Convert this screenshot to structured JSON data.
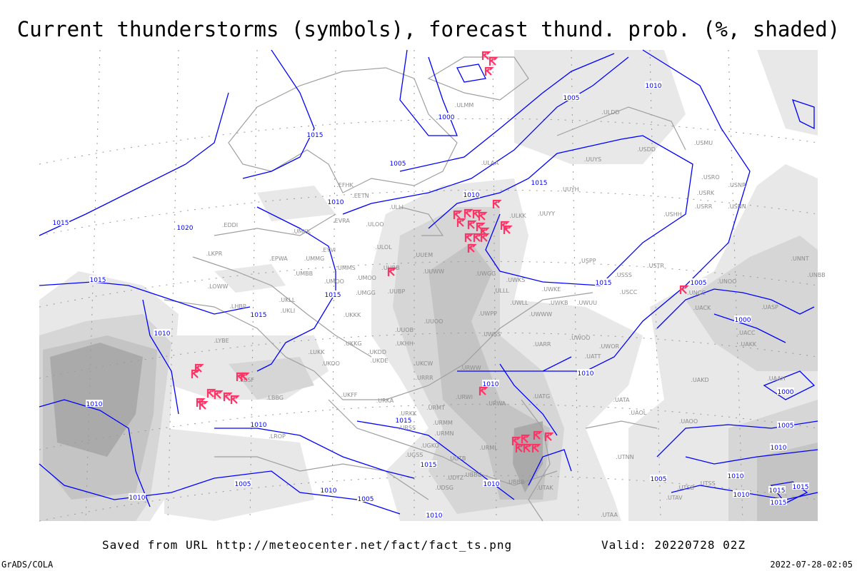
{
  "title": "Current thunderstorms (symbols), forecast thund. prob. (%, shaded)",
  "footer": {
    "saved_from": "Saved from URL http://meteocenter.net/fact/fact_ts.png",
    "valid": "Valid: 20220728 02Z",
    "software": "GrADS/COLA",
    "generated": "2022-07-28-02:05"
  },
  "colors": {
    "isobar": "#0000ff",
    "thunderstorm_symbol": "#ff3366",
    "station_label": "#8c8c8c",
    "coastline": "#a0a0a0",
    "shading_levels": [
      "#e8e8e8",
      "#d6d6d6",
      "#c4c4c4",
      "#aaaaaa"
    ]
  },
  "icons": {
    "thunderstorm": "thunderstorm-symbol-icon"
  },
  "isobar_labels": [
    "1015",
    "1020",
    "1015",
    "1000",
    "1005",
    "1010",
    "1005",
    "1010",
    "1015",
    "1010",
    "1015",
    "1015",
    "1015",
    "1010",
    "1010",
    "1015",
    "1005",
    "1000",
    "1010",
    "1010",
    "1000",
    "1015",
    "1010",
    "1015",
    "1010",
    "1005",
    "1010",
    "1005",
    "1010",
    "1010",
    "1005",
    "1010",
    "1005",
    "1010",
    "1010",
    "1015",
    "1015",
    "1015"
  ],
  "stations": [
    "EDDI",
    "LKPR",
    "EPWA",
    "LOWW",
    "LHBP",
    "LYBE",
    "LBSF",
    "LBBG",
    "LROP",
    "ULMM",
    "ULDD",
    "USDD",
    "USMU",
    "UUYS",
    "ULAA",
    "EFHK",
    "EETN",
    "UUYH",
    "USRO",
    "USRK",
    "USNR",
    "USRR",
    "USNN",
    "ULLI",
    "ULKK",
    "UUYY",
    "USHH",
    "UMKK",
    "EVRA",
    "ULOO",
    "ULOL",
    "UUEM",
    "UMMG",
    "EYVI",
    "UMBB",
    "UMMS",
    "UMOO",
    "UUBB",
    "UUWW",
    "UWGG",
    "UWKS",
    "USPP",
    "USSS",
    "USTR",
    "UNOO",
    "UNNT",
    "UNBB",
    "UKLL",
    "UKLI",
    "UMGG",
    "UUBP",
    "UWKE",
    "USCC",
    "UNCC",
    "UWPP",
    "UWLL",
    "UWKB",
    "UWUU",
    "UWWW",
    "UACK",
    "UASP",
    "UKKK",
    "UUOO",
    "UUOB",
    "UWSS",
    "UACC",
    "UAKK",
    "UKKG",
    "UKDD",
    "UKHH",
    "LUKK",
    "UARR",
    "UWOO",
    "UWOR",
    "UATT",
    "UKOO",
    "UKDE",
    "UKCW",
    "URWW",
    "URRR",
    "UAKD",
    "UAAH",
    "UKFF",
    "URKA",
    "URKK",
    "URWI",
    "URWA",
    "UATG",
    "UATA",
    "UAOL",
    "URMT",
    "URSS",
    "URMM",
    "URMN",
    "UAOO",
    "UGKO",
    "URML",
    "UGSS",
    "UGTB",
    "UBBG",
    "UTAK",
    "UBBB",
    "UTNN",
    "UDYZ",
    "UDSG",
    "UTSB",
    "UTAV",
    "UTAA",
    "UTSS",
    "ULLL",
    "UMOO"
  ]
}
